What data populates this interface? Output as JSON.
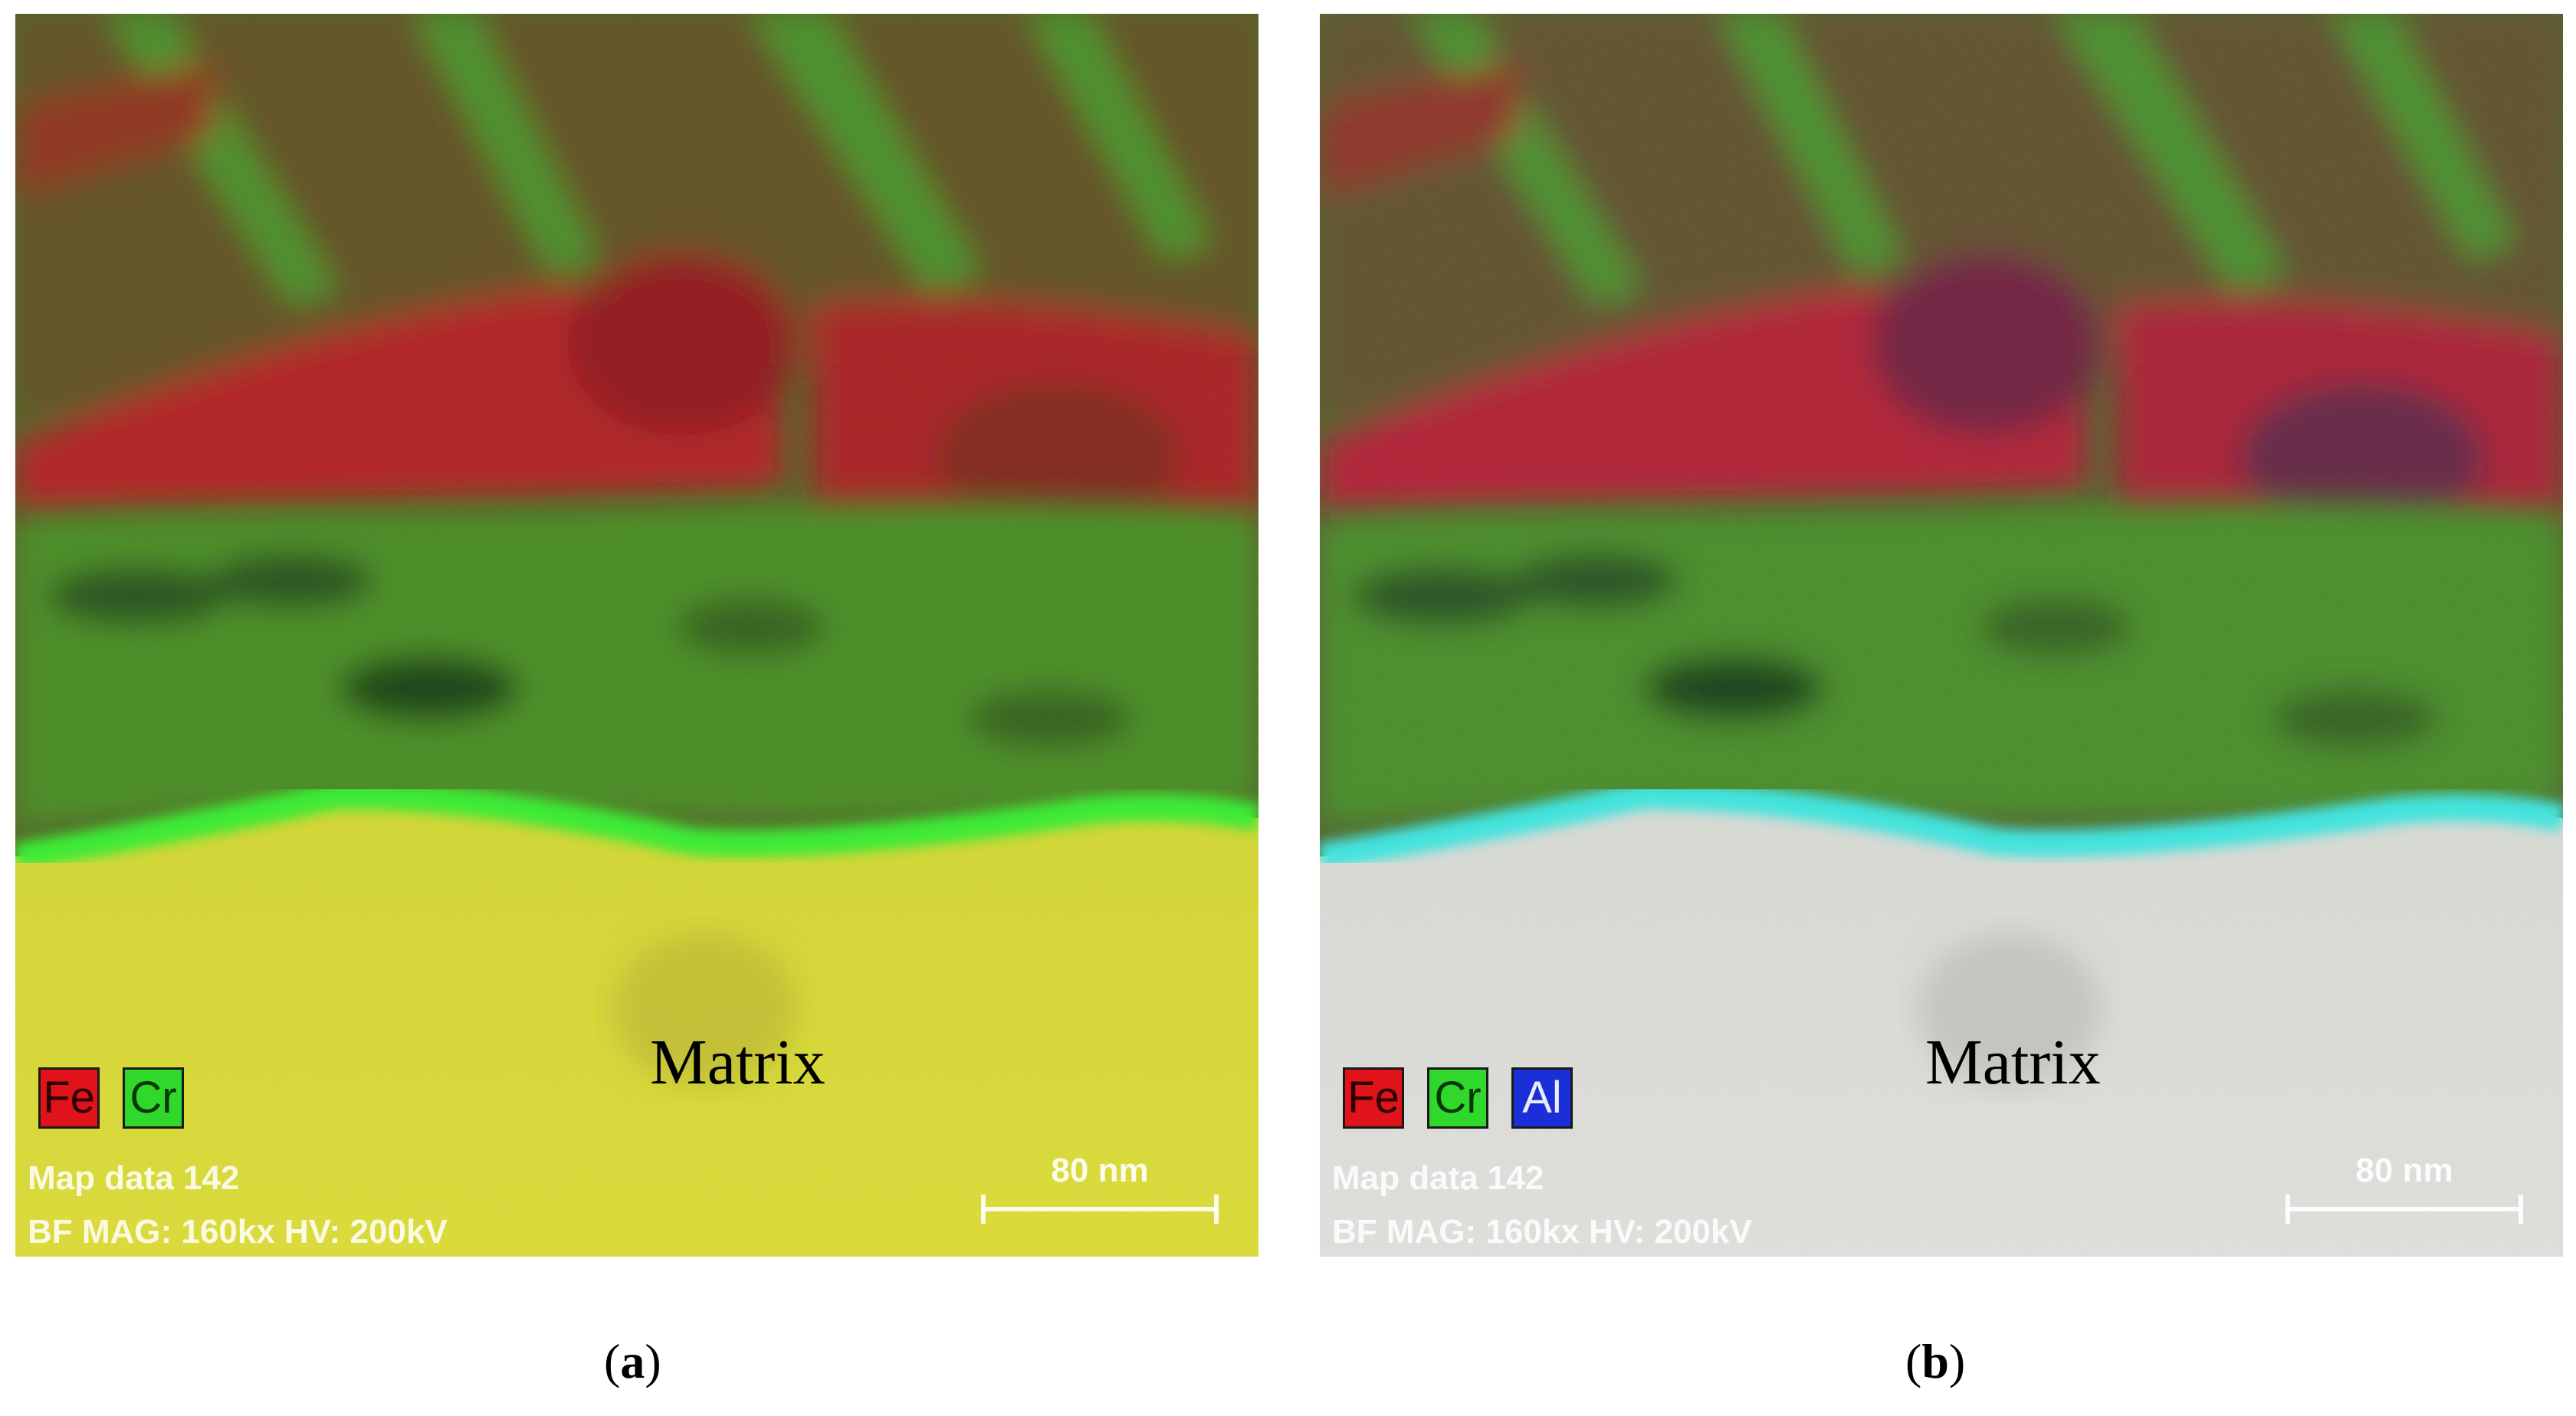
{
  "panels": [
    {
      "id": "a",
      "matrix_label": "Matrix",
      "legend": [
        "Fe",
        "Cr"
      ],
      "info_line1": "Map data 142",
      "info_line2": "BF  MAG: 160kx  HV: 200kV",
      "scale_label": "80 nm",
      "caption_letter": "a",
      "colors": {
        "fe_region": "#b0141a",
        "cr_region": "#3f8a1c",
        "matrix": "#d8d630",
        "boundary": "#2ff02a"
      }
    },
    {
      "id": "b",
      "matrix_label": "Matrix",
      "legend": [
        "Fe",
        "Cr",
        "Al"
      ],
      "info_line1": "Map data 142",
      "info_line2": "BF  MAG: 160kx  HV: 200kV",
      "scale_label": "80 nm",
      "caption_letter": "b",
      "colors": {
        "fe_region": "#b0142a",
        "cr_region": "#3f8a1c",
        "matrix": "#dcdcd6",
        "boundary": "#36e8e0"
      }
    }
  ]
}
